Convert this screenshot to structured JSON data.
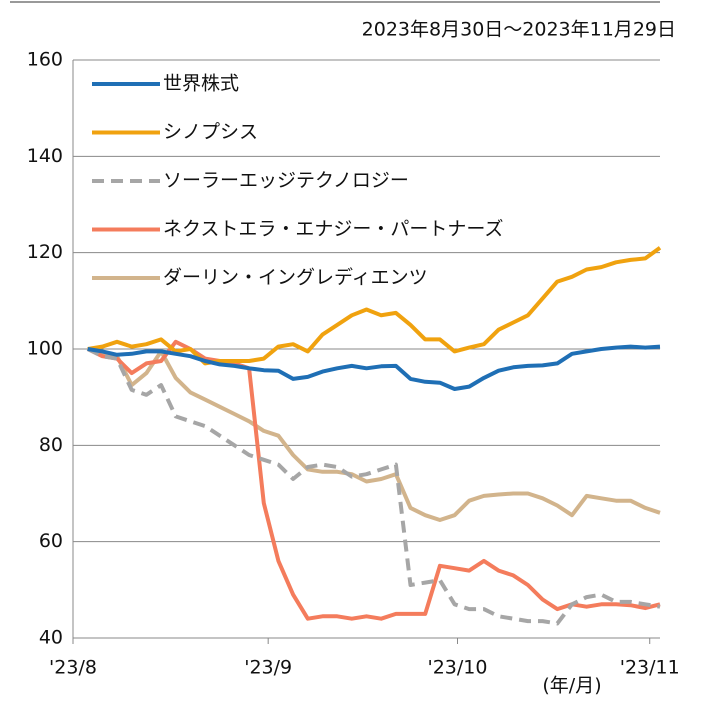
{
  "chart_data": {
    "type": "line",
    "subtitle": "2023年8月30日～2023年11月29日",
    "x_unit_label": "(年/月)",
    "x": [
      0,
      1,
      2,
      3,
      4,
      5,
      6,
      7,
      8,
      9,
      10,
      11,
      12,
      13,
      14,
      15,
      16,
      17,
      18,
      19,
      20,
      21,
      22,
      23,
      24,
      25,
      26,
      27,
      28,
      29,
      30,
      31,
      32,
      33,
      34,
      35,
      36,
      37,
      38,
      39
    ],
    "xlim": [
      -1,
      39
    ],
    "xticks": [
      {
        "value": -1,
        "label": "'23/8"
      },
      {
        "value": 12.3,
        "label": "'23/9"
      },
      {
        "value": 25.2,
        "label": "'23/10"
      },
      {
        "value": 38.3,
        "label": "'23/11"
      }
    ],
    "ylim": [
      40,
      160
    ],
    "yticks": [
      40,
      60,
      80,
      100,
      120,
      140,
      160
    ],
    "grid": true,
    "legend": "upper left",
    "series": [
      {
        "name": "世界株式",
        "color": "#1f6fb5",
        "dash": false,
        "values": [
          100,
          99.5,
          98.8,
          99,
          99.5,
          99.5,
          99,
          98.5,
          97.5,
          96.8,
          96.5,
          96,
          95.6,
          95.5,
          93.8,
          94.2,
          95.3,
          96,
          96.5,
          96,
          96.4,
          96.5,
          93.8,
          93.2,
          93,
          91.7,
          92.2,
          94,
          95.5,
          96.2,
          96.5,
          96.6,
          97,
          99,
          99.5,
          100,
          100.3,
          100.5,
          100.3,
          100.5
        ]
      },
      {
        "name": "シノプシス",
        "color": "#f0a20f",
        "dash": false,
        "values": [
          100,
          100.5,
          101.5,
          100.5,
          101,
          102,
          99.5,
          100,
          97,
          97.5,
          97.5,
          97.5,
          98,
          100.5,
          101,
          99.5,
          103,
          105,
          107,
          108.2,
          107,
          107.5,
          105,
          102,
          102,
          99.5,
          100.3,
          101,
          104,
          105.5,
          107,
          110.5,
          114,
          115,
          116.5,
          117,
          118,
          118.5,
          118.8,
          121
        ]
      },
      {
        "name": "ソーラーエッジテクノロジー",
        "color": "#a6a6a6",
        "dash": true,
        "values": [
          100,
          98.5,
          98,
          91.5,
          90.5,
          92.5,
          86,
          85,
          84,
          82,
          80,
          78,
          77,
          76,
          73,
          75.5,
          76,
          75.5,
          73.5,
          74,
          75,
          76,
          51,
          51.5,
          52,
          47,
          46,
          46,
          44.5,
          44,
          43.5,
          43.5,
          43,
          47,
          48.5,
          49,
          47.5,
          47.5,
          47,
          46.5
        ]
      },
      {
        "name": "ネクストエラ・エナジー・パートナーズ",
        "color": "#f47c5c",
        "dash": false,
        "values": [
          100,
          98.5,
          98,
          95,
          97,
          97.5,
          101.5,
          100,
          98,
          97.5,
          97,
          96,
          68,
          56,
          49,
          44,
          44.5,
          44.5,
          44,
          44.5,
          44,
          45,
          45,
          45,
          55,
          54.5,
          54,
          56,
          54,
          53,
          51,
          48,
          46,
          47,
          46.5,
          47,
          47,
          46.8,
          46.2,
          47
        ]
      },
      {
        "name": "ダーリン・イングレディエンツ",
        "color": "#d2b48c",
        "dash": false,
        "values": [
          100,
          99,
          98.5,
          92.5,
          95,
          99.5,
          94,
          91,
          89.5,
          88,
          86.5,
          85,
          83,
          82,
          78,
          75,
          74.5,
          74.5,
          74,
          72.5,
          73,
          74,
          67,
          65.5,
          64.5,
          65.5,
          68.5,
          69.5,
          69.8,
          70,
          70,
          69,
          67.5,
          65.5,
          69.5,
          69,
          68.5,
          68.5,
          67,
          66
        ]
      }
    ]
  }
}
